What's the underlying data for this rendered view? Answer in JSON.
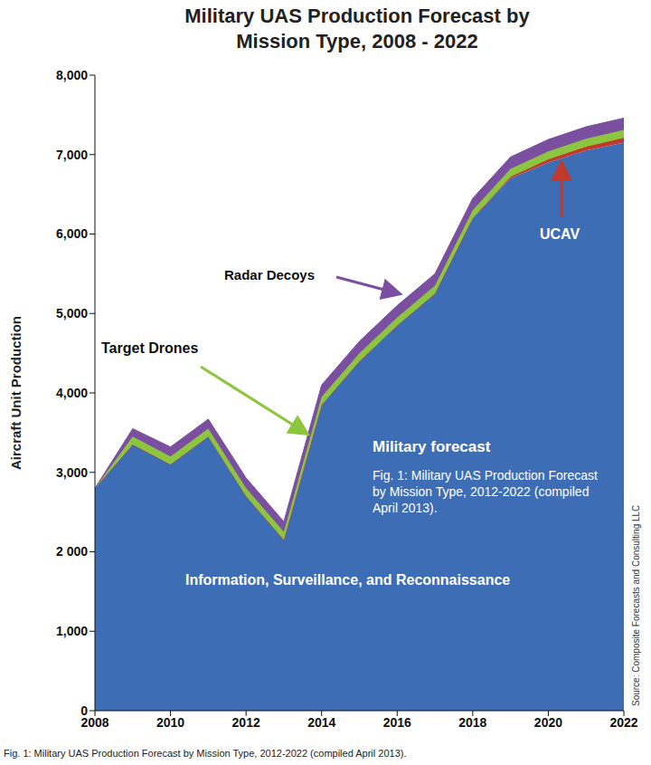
{
  "chart_data": {
    "type": "area",
    "stacked": true,
    "grid": false,
    "title": "Military UAS Production Forecast by Mission Type, 2008 - 2022",
    "y_label": "Aircraft Unit Production",
    "x": [
      2008,
      2009,
      2010,
      2011,
      2012,
      2013,
      2014,
      2015,
      2016,
      2017,
      2018,
      2019,
      2020,
      2021,
      2022
    ],
    "series": [
      {
        "name": "Information, Surveillance, and Reconnaissance",
        "color": "#3d6db5",
        "values": [
          2800,
          3350,
          3100,
          3450,
          2700,
          2150,
          3850,
          4400,
          4850,
          5250,
          6200,
          6700,
          6900,
          7050,
          7150
        ]
      },
      {
        "name": "UCAV",
        "color": "#c0392b",
        "values": [
          0,
          0,
          0,
          0,
          0,
          0,
          0,
          0,
          0,
          0,
          0,
          20,
          40,
          50,
          60
        ]
      },
      {
        "name": "Target Drones",
        "color": "#8cc63f",
        "values": [
          0,
          100,
          100,
          100,
          100,
          100,
          100,
          100,
          100,
          100,
          100,
          100,
          100,
          100,
          100
        ]
      },
      {
        "name": "Radar Decoys",
        "color": "#7b4fa0",
        "values": [
          0,
          100,
          120,
          120,
          130,
          130,
          150,
          150,
          150,
          150,
          150,
          150,
          150,
          150,
          150
        ]
      }
    ],
    "xlim": [
      2008,
      2022
    ],
    "xticks": [
      2008,
      2010,
      2012,
      2014,
      2016,
      2018,
      2020,
      2022
    ],
    "ylim": [
      0,
      8000
    ],
    "yticks": [
      0,
      {
        "value": 1000,
        "label": "1,000"
      },
      {
        "value": 2000,
        "label": "2 000"
      },
      {
        "value": 3000,
        "label": "3,000"
      },
      {
        "value": 4000,
        "label": "4,000"
      },
      {
        "value": 5000,
        "label": "5,000"
      },
      {
        "value": 6000,
        "label": "6,000"
      },
      {
        "value": 7000,
        "label": "7,000"
      },
      {
        "value": 8000,
        "label": "8,000"
      }
    ],
    "annotations": [
      "Military forecast",
      "Fig. 1: Military UAS Production Forecast by Mission Type, 2012-2022 (compiled April 2013).",
      "Source: Composite Forecasts and Consulting LLC"
    ],
    "caption": "Fig. 1: Military UAS Production Forecast by Mission Type, 2012-2022 (compiled April 2013)."
  }
}
